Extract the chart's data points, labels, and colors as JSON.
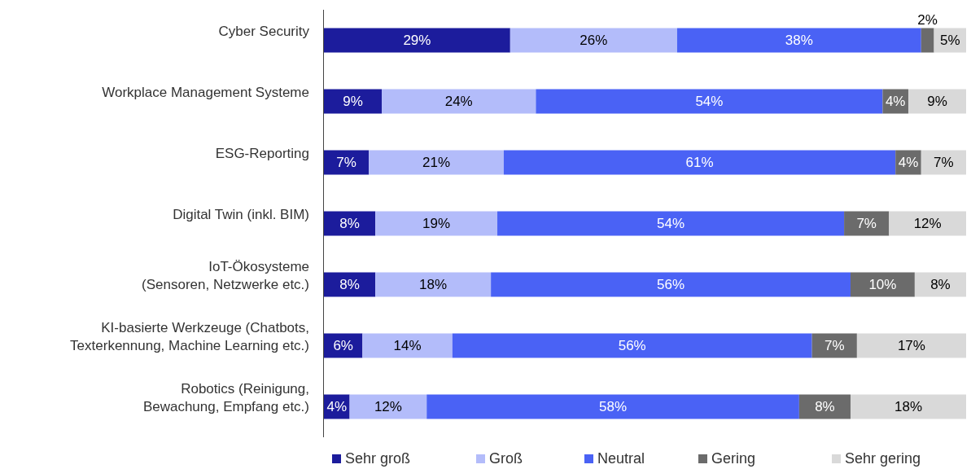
{
  "chart_data": {
    "type": "bar",
    "orientation": "horizontal",
    "stacked": true,
    "legend": "bottom",
    "tick_labels": "y",
    "categories": [
      "Cyber Security",
      "Workplace Management Systeme",
      "ESG-Reporting",
      "Digital Twin (inkl. BIM)",
      "IoT-Ökosysteme\n(Sensoren, Netzwerke etc.)",
      "KI-basierte Werkzeuge (Chatbots,\nTexterkennung, Machine Learning etc.)",
      "Robotics (Reinigung,\nBewachung, Empfang etc.)"
    ],
    "series": [
      {
        "name": "Sehr groß",
        "color": "#1c1c9c",
        "values": [
          29,
          9,
          7,
          8,
          8,
          6,
          4
        ],
        "value_labels": [
          "29%",
          "9%",
          "7%",
          "8%",
          "8%",
          "6%",
          "4%"
        ]
      },
      {
        "name": "Groß",
        "color": "#b3bcfa",
        "values": [
          26,
          24,
          21,
          19,
          18,
          14,
          12
        ],
        "value_labels": [
          "26%",
          "24%",
          "21%",
          "19%",
          "18%",
          "14%",
          "12%"
        ]
      },
      {
        "name": "Neutral",
        "color": "#4a62f5",
        "values": [
          38,
          54,
          61,
          54,
          56,
          56,
          58
        ],
        "value_labels": [
          "38%",
          "54%",
          "61%",
          "54%",
          "56%",
          "56%",
          "58%"
        ]
      },
      {
        "name": "Gering",
        "color": "#6b6b6b",
        "values": [
          2,
          4,
          4,
          7,
          10,
          7,
          8
        ],
        "value_labels": [
          "2%",
          "4%",
          "4%",
          "7%",
          "10%",
          "7%",
          "8%"
        ]
      },
      {
        "name": "Sehr gering",
        "color": "#d9d9d9",
        "values": [
          5,
          9,
          7,
          12,
          8,
          17,
          18
        ],
        "value_labels": [
          "5%",
          "9%",
          "7%",
          "12%",
          "8%",
          "17%",
          "18%"
        ]
      }
    ]
  }
}
